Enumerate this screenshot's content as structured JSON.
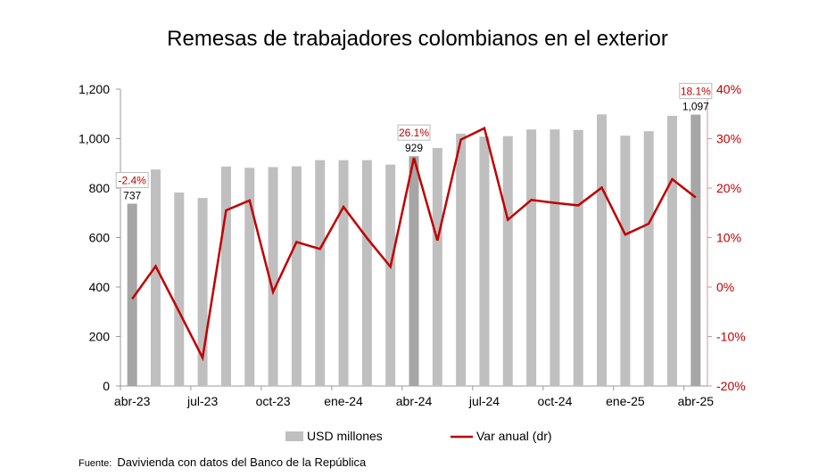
{
  "chart_data": {
    "type": "bar+line",
    "title": "Remesas de trabajadores colombianos en el exterior",
    "categories": [
      "abr-23",
      "may-23",
      "jun-23",
      "jul-23",
      "ago-23",
      "sep-23",
      "oct-23",
      "nov-23",
      "dic-23",
      "ene-24",
      "feb-24",
      "mar-24",
      "abr-24",
      "may-24",
      "jun-24",
      "jul-24",
      "ago-24",
      "sep-24",
      "oct-24",
      "nov-24",
      "dic-24",
      "ene-25",
      "feb-25",
      "mar-25",
      "abr-25"
    ],
    "x_tick_labels": [
      "abr-23",
      "jul-23",
      "oct-23",
      "ene-24",
      "abr-24",
      "jul-24",
      "oct-24",
      "ene-25",
      "abr-25"
    ],
    "series": [
      {
        "name": "USD millones",
        "type": "bar",
        "axis": "left",
        "color": "#bfbfbf",
        "highlight_color": "#a6a6a6",
        "values": [
          737,
          875,
          782,
          760,
          887,
          882,
          885,
          888,
          913,
          913,
          913,
          895,
          929,
          962,
          1020,
          1008,
          1010,
          1037,
          1037,
          1035,
          1098,
          1012,
          1030,
          1092,
          1097
        ]
      },
      {
        "name": "Var anual (dr)",
        "type": "line",
        "axis": "right",
        "color": "#c00000",
        "values": [
          -2.4,
          4.2,
          -5.0,
          -14.3,
          15.5,
          17.5,
          -1.0,
          9.1,
          7.7,
          16.2,
          9.9,
          4.1,
          26.1,
          9.4,
          29.8,
          32.1,
          13.6,
          17.6,
          17.0,
          16.5,
          20.1,
          10.6,
          12.8,
          21.8,
          18.1
        ]
      }
    ],
    "highlighted": [
      0,
      12,
      24
    ],
    "bar_labels": [
      "737",
      "929",
      "1,097"
    ],
    "line_labels": [
      "-2.4%",
      "26.1%",
      "18.1%"
    ],
    "left_axis": {
      "ylim": [
        0,
        1200
      ],
      "ticks": [
        "0",
        "200",
        "400",
        "600",
        "800",
        "1,000",
        "1,200"
      ]
    },
    "right_axis": {
      "ylim": [
        -20,
        40
      ],
      "ticks": [
        "-20%",
        "-10%",
        "0%",
        "10%",
        "20%",
        "30%",
        "40%"
      ],
      "color": "#c00000"
    },
    "legend_placement": "bottom",
    "grid": false
  },
  "source": {
    "label": "Fuente:",
    "text": "Davivienda con datos del Banco de la República"
  }
}
